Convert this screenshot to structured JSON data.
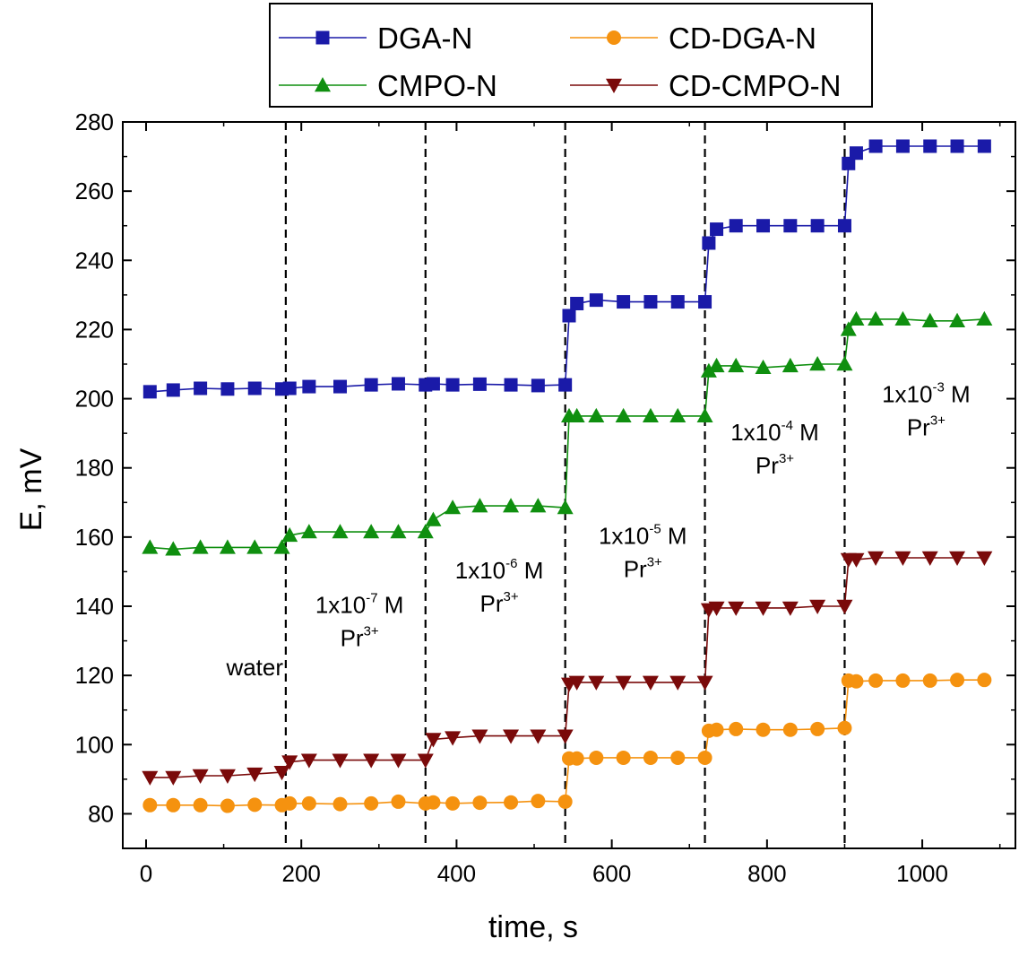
{
  "chart_data": {
    "type": "line",
    "title": "",
    "xlabel": "time, s",
    "ylabel": "E, mV",
    "xlim": [
      -30,
      1120
    ],
    "ylim": [
      70,
      280
    ],
    "xticks": [
      0,
      200,
      400,
      600,
      800,
      1000
    ],
    "yticks": [
      80,
      100,
      120,
      140,
      160,
      180,
      200,
      220,
      240,
      260,
      280
    ],
    "grid": false,
    "legend_position": "top",
    "vlines": [
      180,
      360,
      540,
      720,
      900
    ],
    "colors": {
      "DGA-N": "#1a1aa8",
      "CD-DGA-N": "#f5920f",
      "CMPO-N": "#0f8f0f",
      "CD-CMPO-N": "#7a0a0a"
    },
    "series": [
      {
        "name": "DGA-N",
        "marker": "square",
        "x": [
          5,
          35,
          70,
          105,
          140,
          175,
          185,
          210,
          250,
          290,
          325,
          360,
          370,
          395,
          430,
          470,
          505,
          540,
          545,
          555,
          580,
          615,
          650,
          685,
          720,
          725,
          735,
          760,
          795,
          830,
          865,
          900,
          905,
          915,
          940,
          975,
          1010,
          1045,
          1080
        ],
        "y": [
          202,
          202.5,
          203,
          202.8,
          203,
          202.8,
          203,
          203.5,
          203.5,
          204,
          204.3,
          204,
          204.3,
          204,
          204.2,
          204,
          203.8,
          204,
          224,
          227.5,
          228.5,
          228,
          228,
          228,
          228,
          245,
          249,
          250,
          250,
          250,
          250,
          250,
          268,
          271,
          273,
          273,
          273,
          273,
          273
        ]
      },
      {
        "name": "CMPO-N",
        "marker": "triangle-up",
        "x": [
          5,
          35,
          70,
          105,
          140,
          175,
          185,
          210,
          250,
          290,
          325,
          360,
          370,
          395,
          430,
          470,
          505,
          540,
          545,
          555,
          580,
          615,
          650,
          685,
          720,
          725,
          735,
          760,
          795,
          830,
          865,
          900,
          905,
          915,
          940,
          975,
          1010,
          1045,
          1080
        ],
        "y": [
          157,
          156.5,
          157,
          157,
          157,
          157,
          160.5,
          161.5,
          161.5,
          161.5,
          161.5,
          161.5,
          165,
          168.5,
          169,
          169,
          169,
          168.5,
          195,
          195,
          195,
          195,
          195,
          195,
          195,
          208,
          209.5,
          209.5,
          209,
          209.5,
          210,
          210,
          220,
          223,
          223,
          223,
          222.5,
          222.5,
          223
        ]
      },
      {
        "name": "CD-DGA-N",
        "marker": "circle",
        "x": [
          5,
          35,
          70,
          105,
          140,
          175,
          185,
          210,
          250,
          290,
          325,
          360,
          370,
          395,
          430,
          470,
          505,
          540,
          545,
          555,
          580,
          615,
          650,
          685,
          720,
          725,
          735,
          760,
          795,
          830,
          865,
          900,
          905,
          915,
          940,
          975,
          1010,
          1045,
          1080
        ],
        "y": [
          82.5,
          82.5,
          82.5,
          82.3,
          82.6,
          82.5,
          83,
          83,
          82.8,
          83,
          83.5,
          83,
          83.3,
          83,
          83.2,
          83.3,
          83.7,
          83.5,
          96,
          96,
          96.2,
          96.2,
          96.2,
          96.2,
          96.2,
          104,
          104.3,
          104.5,
          104.3,
          104.3,
          104.5,
          104.8,
          118.5,
          118.3,
          118.5,
          118.5,
          118.5,
          118.7,
          118.7
        ]
      },
      {
        "name": "CD-CMPO-N",
        "marker": "triangle-down",
        "x": [
          5,
          35,
          70,
          105,
          140,
          175,
          185,
          210,
          250,
          290,
          325,
          360,
          370,
          395,
          430,
          470,
          505,
          540,
          545,
          555,
          580,
          615,
          650,
          685,
          720,
          725,
          735,
          760,
          795,
          830,
          865,
          900,
          905,
          915,
          940,
          975,
          1010,
          1045,
          1080
        ],
        "y": [
          90.5,
          90.5,
          91,
          91,
          91.5,
          92,
          95,
          95.5,
          95.5,
          95.5,
          95.5,
          95.5,
          101.5,
          102,
          102.5,
          102.5,
          102.5,
          102.5,
          117.5,
          118,
          118,
          118,
          118,
          118,
          118,
          139,
          139.5,
          139.5,
          139.5,
          139.5,
          140,
          140,
          153.5,
          153.5,
          154,
          154,
          154,
          154,
          154
        ]
      }
    ],
    "annotations": [
      {
        "lines": [
          "water"
        ],
        "x": 140,
        "y": 120
      },
      {
        "lines": [
          "1x10",
          "-7",
          " M",
          "Pr",
          "3+"
        ],
        "x": 275,
        "y": 138
      },
      {
        "lines": [
          "1x10",
          "-6",
          " M",
          "Pr",
          "3+"
        ],
        "x": 455,
        "y": 148
      },
      {
        "lines": [
          "1x10",
          "-5",
          " M",
          "Pr",
          "3+"
        ],
        "x": 640,
        "y": 158
      },
      {
        "lines": [
          "1x10",
          "-4",
          " M",
          "Pr",
          "3+"
        ],
        "x": 810,
        "y": 188
      },
      {
        "lines": [
          "1x10",
          "-3",
          " M",
          "Pr",
          "3+"
        ],
        "x": 1005,
        "y": 199
      }
    ]
  }
}
